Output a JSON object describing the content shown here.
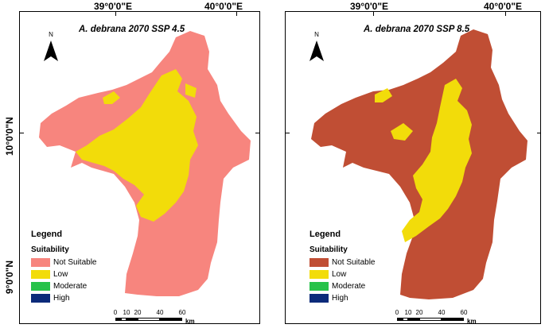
{
  "axis_labels": {
    "lon_left": "39°0'0\"E",
    "lon_right": "40°0'0\"E",
    "lat_top": "10°0'0\"N",
    "lat_bottom": "9°0'0\"N"
  },
  "north_arrow": {
    "label": "N",
    "icon": "north-arrow-icon"
  },
  "legend": {
    "title": "Legend",
    "subtitle": "Suitability",
    "classes": [
      {
        "label": "Not Suitable"
      },
      {
        "label": "Low"
      },
      {
        "label": "Moderate"
      },
      {
        "label": "High"
      }
    ]
  },
  "scalebar": {
    "ticks": [
      "0",
      "10",
      "20",
      "40",
      "60"
    ],
    "unit": "km"
  },
  "maps": [
    {
      "title": "A. debrana 2070 SSP 4.5",
      "colors": {
        "not_suitable": "#f7857e",
        "low": "#f2dc0a",
        "moderate": "#27c24a",
        "high": "#0b2a7a"
      }
    },
    {
      "title": "A. debrana 2070 SSP 8.5",
      "colors": {
        "not_suitable": "#c04e34",
        "low": "#f2dc0a",
        "moderate": "#27c24a",
        "high": "#0b2a7a"
      }
    }
  ]
}
